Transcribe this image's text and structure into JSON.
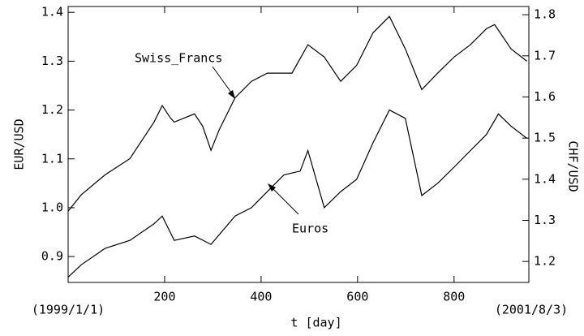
{
  "chart_data": {
    "type": "line",
    "xlabel": "t [day]",
    "ylabel": "EUR/USD",
    "y2label": "CHF/USD",
    "xlim": [
      0,
      955
    ],
    "xticks": [
      200,
      400,
      600,
      800
    ],
    "ylim": [
      0.847,
      1.412
    ],
    "yticks": [
      0.9,
      {
        "value": 1.0,
        "label": "1.0"
      },
      1.1,
      1.2,
      1.3,
      1.4
    ],
    "y2lim": [
      1.149,
      1.82
    ],
    "y2ticks": [
      1.2,
      1.3,
      1.4,
      1.5,
      1.6,
      1.7,
      1.8
    ],
    "annotations": [
      "(1999/1/1)",
      "(2001/8/3)"
    ],
    "series": [
      {
        "name": "Swiss_Francs",
        "color": "#000000",
        "axis": "y2",
        "x": [
          0,
          27,
          77,
          128,
          178,
          195,
          212,
          220,
          262,
          279,
          296,
          313,
          346,
          380,
          413,
          464,
          497,
          531,
          565,
          598,
          632,
          666,
          699,
          733,
          766,
          800,
          834,
          867,
          884,
          918,
          951
        ],
        "values": [
          1.322,
          1.362,
          1.411,
          1.45,
          1.539,
          1.579,
          1.549,
          1.539,
          1.559,
          1.529,
          1.47,
          1.52,
          1.598,
          1.638,
          1.658,
          1.658,
          1.727,
          1.697,
          1.638,
          1.677,
          1.756,
          1.796,
          1.717,
          1.618,
          1.658,
          1.697,
          1.727,
          1.766,
          1.776,
          1.717,
          1.687
        ]
      },
      {
        "name": "Euros",
        "color": "#000000",
        "x": [
          0,
          27,
          77,
          128,
          178,
          195,
          220,
          262,
          296,
          346,
          380,
          413,
          447,
          481,
          497,
          531,
          565,
          598,
          632,
          666,
          699,
          733,
          766,
          800,
          834,
          867,
          892,
          918,
          951
        ],
        "values": [
          0.858,
          0.883,
          0.917,
          0.933,
          0.967,
          0.983,
          0.933,
          0.942,
          0.925,
          0.983,
          1.0,
          1.033,
          1.067,
          1.075,
          1.117,
          1.0,
          1.033,
          1.058,
          1.133,
          1.2,
          1.183,
          1.025,
          1.05,
          1.083,
          1.117,
          1.15,
          1.192,
          1.167,
          1.142
        ]
      }
    ]
  }
}
